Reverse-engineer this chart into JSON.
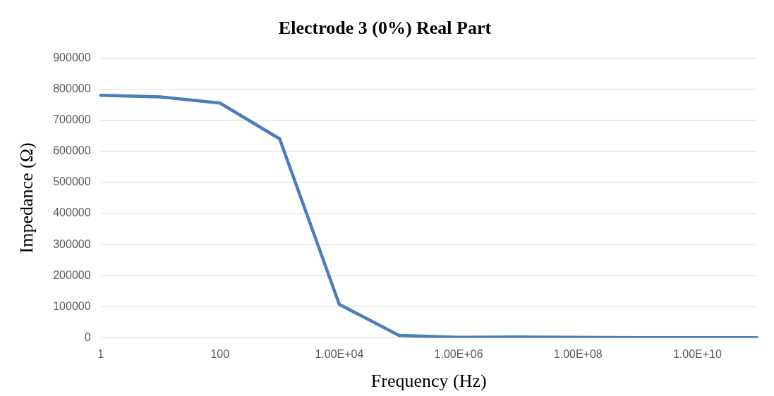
{
  "chart_data": {
    "type": "line",
    "title": "Electrode 3 (0%) Real Part",
    "xlabel": "Frequency (Hz)",
    "ylabel": "Impedance (Ω)",
    "categories": [
      "1",
      null,
      "100",
      null,
      "1.00E+04",
      null,
      "1.00E+06",
      null,
      "1.00E+08",
      null,
      "1.00E+10",
      null
    ],
    "series": [
      {
        "color": "#4a7ebb",
        "values": [
          780000,
          775000,
          755000,
          640000,
          108000,
          8000,
          2000,
          3000,
          2000,
          1000,
          1000,
          1000
        ]
      }
    ],
    "ylim": [
      0,
      900000
    ],
    "yticks": [
      0,
      100000,
      200000,
      300000,
      400000,
      500000,
      600000,
      700000,
      800000,
      900000
    ],
    "grid": "y",
    "legend": false,
    "marker": "none",
    "line_style": "solid"
  }
}
